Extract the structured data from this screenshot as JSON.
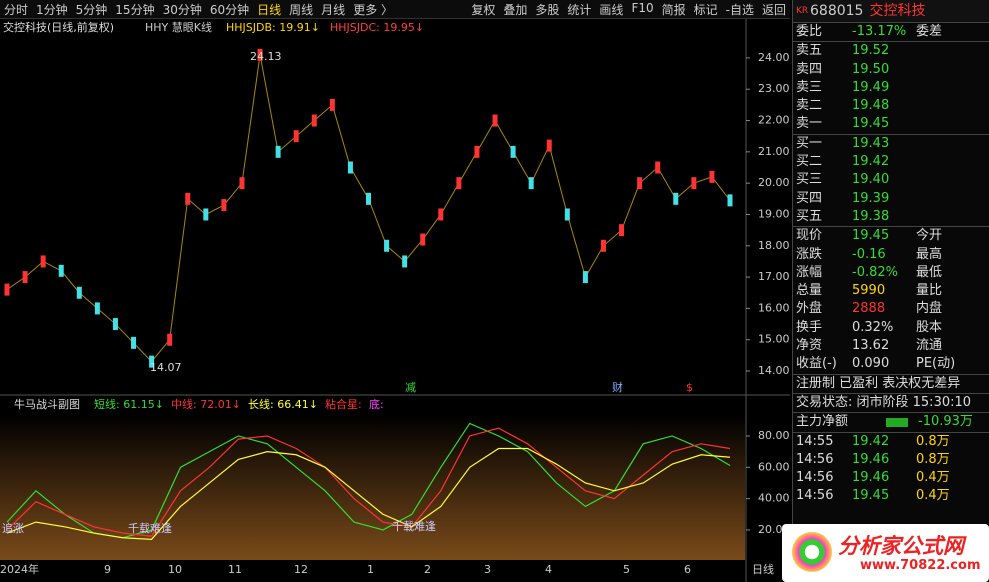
{
  "toolbar": {
    "periods": [
      "分时",
      "1分钟",
      "5分钟",
      "15分钟",
      "30分钟",
      "60分钟",
      "日线",
      "周线",
      "月线",
      "更多 〉"
    ],
    "active_period": 6,
    "actions": [
      "复权",
      "叠加",
      "多股",
      "统计",
      "画线",
      "F10",
      "简报",
      "标记",
      "-自选",
      "返回"
    ]
  },
  "main_chart": {
    "type": "line",
    "title": "交控科技(日线,前复权)",
    "indicator": "HHY 慧眼K线",
    "labels": [
      {
        "text": "HHJSJDB: 19.91↓",
        "color": "#ffd700"
      },
      {
        "text": "HHJSJDC: 19.95↓",
        "color": "#ff4040"
      }
    ],
    "values": [
      16.6,
      17.0,
      17.5,
      17.2,
      16.5,
      16.0,
      15.5,
      14.9,
      14.3,
      15.0,
      19.5,
      19.0,
      19.3,
      20.0,
      24.1,
      21.0,
      21.5,
      22.0,
      22.5,
      20.5,
      19.5,
      18.0,
      17.5,
      18.2,
      19.0,
      20.0,
      21.0,
      22.0,
      21.0,
      20.0,
      21.2,
      19.0,
      17.0,
      18.0,
      18.5,
      20.0,
      20.5,
      19.5,
      20.0,
      20.2,
      19.45
    ],
    "ylim": [
      13.33,
      24.7
    ],
    "yticks": [
      {
        "value": 14,
        "label": "14.00"
      },
      {
        "value": 15,
        "label": "15.00"
      },
      {
        "value": 16,
        "label": "16.00"
      },
      {
        "value": 17,
        "label": "17.00"
      },
      {
        "value": 18,
        "label": "18.00"
      },
      {
        "value": 19,
        "label": "19.00"
      },
      {
        "value": 20,
        "label": "20.00"
      },
      {
        "value": 21,
        "label": "21.00"
      },
      {
        "value": 22,
        "label": "22.00"
      },
      {
        "value": 23,
        "label": "23.00"
      },
      {
        "value": 24,
        "label": "24.00"
      }
    ],
    "annotations": [
      "24.13",
      "14.07",
      "减",
      "财",
      "$"
    ]
  },
  "sub_chart": {
    "type": "line",
    "title": "牛马战斗副图",
    "series": [
      {
        "name": "短线",
        "legend": "短线: 61.15↓",
        "color": "#33dd33",
        "values": [
          25,
          45,
          30,
          18,
          15,
          20,
          60,
          70,
          80,
          75,
          60,
          45,
          25,
          20,
          30,
          60,
          88,
          80,
          70,
          50,
          35,
          45,
          75,
          80,
          72,
          61.15
        ]
      },
      {
        "name": "中线",
        "legend": "中线: 72.01↓",
        "color": "#ff3333",
        "values": [
          20,
          38,
          30,
          22,
          18,
          16,
          45,
          60,
          78,
          80,
          72,
          60,
          40,
          25,
          22,
          45,
          80,
          85,
          75,
          60,
          45,
          40,
          55,
          70,
          75,
          72.01
        ]
      },
      {
        "name": "长线",
        "legend": "长线: 66.41↓",
        "color": "#ffff33",
        "values": [
          18,
          25,
          22,
          18,
          15,
          14,
          35,
          50,
          65,
          70,
          68,
          60,
          45,
          30,
          22,
          35,
          60,
          72,
          72,
          62,
          50,
          45,
          50,
          62,
          68,
          66.41
        ]
      }
    ],
    "extra_legend": [
      {
        "text": "粘合星:",
        "color": "#ff3333"
      },
      {
        "text": "底:",
        "color": "#ff44ff"
      }
    ],
    "ylim": [
      0.8,
      93.4
    ],
    "yticks": [
      {
        "value": 20,
        "label": "20.00"
      },
      {
        "value": 40,
        "label": "40.00"
      },
      {
        "value": 60,
        "label": "60.00"
      },
      {
        "value": 80,
        "label": "80.00"
      }
    ],
    "annotations": [
      "追涨",
      "千载难逢",
      "千载难逢"
    ]
  },
  "x_labels": [
    "2024年",
    "9",
    "10",
    "11",
    "12",
    "1",
    "2",
    "3",
    "4",
    "5",
    "6"
  ],
  "quote": {
    "badge": "KR",
    "code": "688015",
    "name": "交控科技",
    "weibi": [
      "委比",
      "-13.17%",
      "委差"
    ],
    "asks": [
      [
        "卖五",
        "19.52"
      ],
      [
        "卖四",
        "19.50"
      ],
      [
        "卖三",
        "19.49"
      ],
      [
        "卖二",
        "19.48"
      ],
      [
        "卖一",
        "19.45"
      ]
    ],
    "bids": [
      [
        "买一",
        "19.43"
      ],
      [
        "买二",
        "19.42"
      ],
      [
        "买三",
        "19.40"
      ],
      [
        "买四",
        "19.39"
      ],
      [
        "买五",
        "19.38"
      ]
    ],
    "stats": [
      [
        "现价",
        "19.45",
        "今开"
      ],
      [
        "涨跌",
        "-0.16",
        "最高"
      ],
      [
        "涨幅",
        "-0.82%",
        "最低"
      ],
      [
        "总量",
        "5990",
        "量比"
      ],
      [
        "外盘",
        "2888",
        "内盘"
      ],
      [
        "换手",
        "0.32%",
        "股本"
      ],
      [
        "净资",
        "13.62",
        "流通"
      ],
      [
        "收益(-)",
        "0.090",
        "PE(动)"
      ]
    ],
    "info": "注册制 已盈利 表决权无差异",
    "status": "交易状态: 闭市阶段 15:30:10",
    "main_net": [
      "主力净额",
      "-10.93万"
    ],
    "ticks": [
      [
        "14:55",
        "19.42",
        "0.8万"
      ],
      [
        "14:56",
        "19.46",
        "0.8万"
      ],
      [
        "14:56",
        "19.46",
        "0.4万"
      ],
      [
        "14:56",
        "19.45",
        "0.4万"
      ]
    ]
  },
  "watermark": {
    "text": "分析家公式网",
    "url": "www.70822.com"
  },
  "footer": "日线"
}
